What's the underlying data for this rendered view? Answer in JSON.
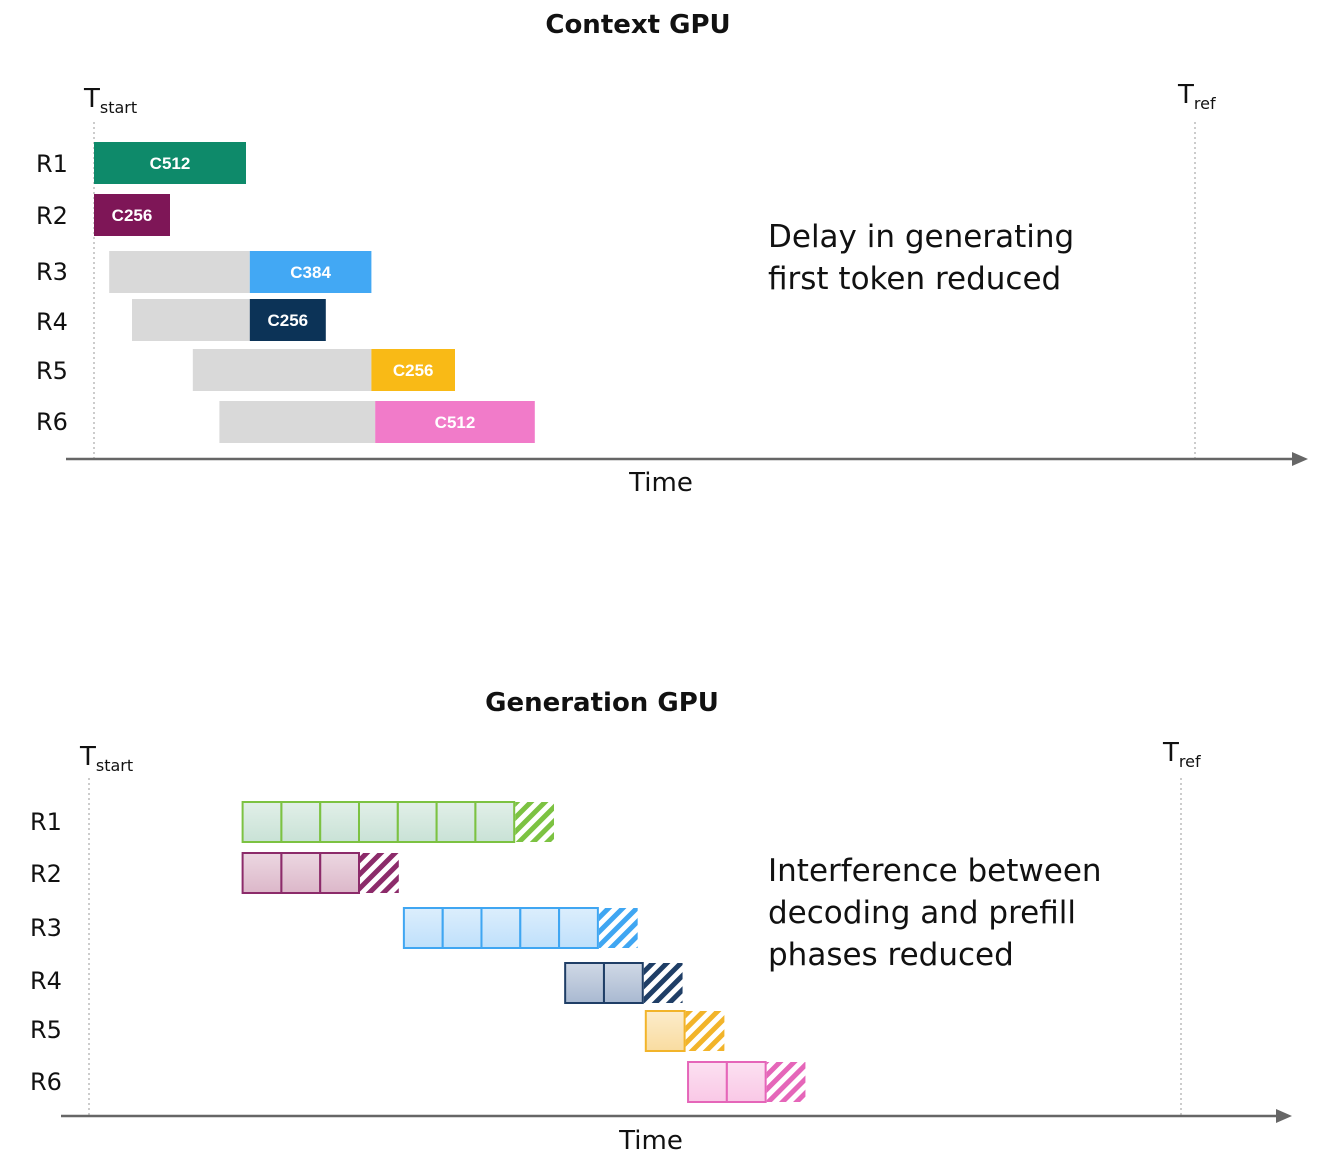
{
  "context": {
    "title": "Context GPU",
    "t_start": {
      "main": "T",
      "sub": "start"
    },
    "t_ref": {
      "main": "T",
      "sub": "ref"
    },
    "time_label": "Time",
    "note": [
      "Delay in generating",
      "first token reduced"
    ],
    "rows": [
      {
        "label": "R1",
        "wait_start": null,
        "start": 0,
        "end": 4,
        "chunk": "C512",
        "color": "#0e8a6a"
      },
      {
        "label": "R2",
        "wait_start": null,
        "start": 0,
        "end": 2,
        "chunk": "C256",
        "color": "#7e1657"
      },
      {
        "label": "R3",
        "wait_start": 0.4,
        "start": 4.1,
        "end": 7.3,
        "chunk": "C384",
        "color": "#42a8f4"
      },
      {
        "label": "R4",
        "wait_start": 1.0,
        "start": 4.1,
        "end": 6.1,
        "chunk": "C256",
        "color": "#0c3357"
      },
      {
        "label": "R5",
        "wait_start": 2.6,
        "start": 7.3,
        "end": 9.5,
        "chunk": "C256",
        "color": "#f9ba16"
      },
      {
        "label": "R6",
        "wait_start": 3.3,
        "start": 7.4,
        "end": 11.6,
        "chunk": "C512",
        "color": "#f17bc9"
      }
    ]
  },
  "generation": {
    "title": "Generation GPU",
    "t_start": {
      "main": "T",
      "sub": "start"
    },
    "t_ref": {
      "main": "T",
      "sub": "ref"
    },
    "time_label": "Time",
    "note": [
      "Interference between",
      "decoding and prefill",
      "phases reduced"
    ],
    "rows": [
      {
        "label": "R1",
        "start": 4.0,
        "tokens": 7,
        "color": "#7cc242",
        "fill": "#c9e2d6"
      },
      {
        "label": "R2",
        "start": 4.0,
        "tokens": 3,
        "color": "#8c2b6a",
        "fill": "#dcb7c9"
      },
      {
        "label": "R3",
        "start": 8.2,
        "tokens": 5,
        "color": "#3fa6f2",
        "fill": "#bfe0fb"
      },
      {
        "label": "R4",
        "start": 12.4,
        "tokens": 2,
        "color": "#1f3e66",
        "fill": "#a9b9d1"
      },
      {
        "label": "R5",
        "start": 14.5,
        "tokens": 1,
        "color": "#f2b42a",
        "fill": "#f9dca0"
      },
      {
        "label": "R6",
        "start": 15.6,
        "tokens": 2,
        "color": "#e566b9",
        "fill": "#f9c8e6"
      }
    ]
  }
}
